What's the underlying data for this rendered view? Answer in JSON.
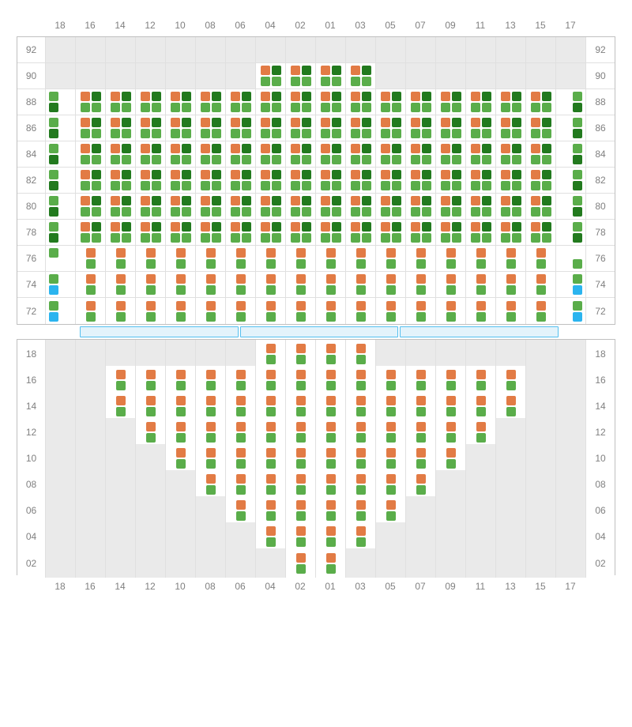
{
  "colors": {
    "orange": "#e27b45",
    "green": "#5aad4a",
    "darkgreen": "#227a1e",
    "blue": "#2bb4ef",
    "empty": "#eaeaea",
    "grid_line": "#e0e0e0",
    "label": "#808080",
    "stage_fill": "#e3f3fb",
    "stage_border": "#54bfef"
  },
  "columns": [
    "18",
    "16",
    "14",
    "12",
    "10",
    "08",
    "06",
    "04",
    "02",
    "01",
    "03",
    "05",
    "07",
    "09",
    "11",
    "13",
    "15",
    "17"
  ],
  "upper": {
    "rows": [
      "92",
      "90",
      "88",
      "86",
      "84",
      "82",
      "80",
      "78",
      "76",
      "74",
      "72"
    ],
    "cells": {
      "92": [
        ".",
        ".",
        ".",
        ".",
        ".",
        ".",
        ".",
        ".",
        ".",
        ".",
        ".",
        ".",
        ".",
        ".",
        ".",
        ".",
        ".",
        "."
      ],
      "90": [
        ".",
        ".",
        ".",
        ".",
        ".",
        ".",
        ".",
        "A",
        "A",
        "A",
        "A",
        ".",
        ".",
        ".",
        ".",
        ".",
        ".",
        "."
      ],
      "88": [
        "L",
        "A",
        "A",
        "A",
        "A",
        "A",
        "A",
        "A",
        "A",
        "A",
        "A",
        "A",
        "A",
        "A",
        "A",
        "A",
        "A",
        "R"
      ],
      "86": [
        "L",
        "A",
        "A",
        "A",
        "A",
        "A",
        "A",
        "A",
        "A",
        "A",
        "A",
        "A",
        "A",
        "A",
        "A",
        "A",
        "A",
        "R"
      ],
      "84": [
        "L",
        "A",
        "A",
        "A",
        "A",
        "A",
        "A",
        "A",
        "A",
        "A",
        "A",
        "A",
        "A",
        "A",
        "A",
        "A",
        "A",
        "R"
      ],
      "82": [
        "L",
        "A",
        "A",
        "A",
        "A",
        "A",
        "A",
        "A",
        "A",
        "A",
        "A",
        "A",
        "A",
        "A",
        "A",
        "A",
        "A",
        "R"
      ],
      "80": [
        "L",
        "A",
        "A",
        "A",
        "A",
        "A",
        "A",
        "A",
        "A",
        "A",
        "A",
        "A",
        "A",
        "A",
        "A",
        "A",
        "A",
        "R"
      ],
      "78": [
        "L",
        "A",
        "A",
        "A",
        "A",
        "A",
        "A",
        "A",
        "A",
        "A",
        "A",
        "A",
        "A",
        "A",
        "A",
        "A",
        "A",
        "R"
      ],
      "76": [
        "sL",
        "B",
        "B",
        "B",
        "B",
        "B",
        "B",
        "B",
        "B",
        "B",
        "B",
        "B",
        "B",
        "B",
        "B",
        "B",
        "B",
        "sR"
      ],
      "74": [
        "CL",
        "B",
        "B",
        "B",
        "B",
        "B",
        "B",
        "B",
        "B",
        "B",
        "B",
        "B",
        "B",
        "B",
        "B",
        "B",
        "B",
        "CR"
      ],
      "72": [
        "CL",
        "B",
        "B",
        "B",
        "B",
        "B",
        "B",
        "B",
        "B",
        "B",
        "B",
        "B",
        "B",
        "B",
        "B",
        "B",
        "B",
        "CR"
      ]
    }
  },
  "stage_span": {
    "start": 2,
    "end": 18
  },
  "lower": {
    "rows": [
      "18",
      "16",
      "14",
      "12",
      "10",
      "08",
      "06",
      "04",
      "02"
    ],
    "cells": {
      "18": [
        ".",
        ".",
        ".",
        ".",
        ".",
        ".",
        ".",
        "B",
        "B",
        "B",
        "B",
        ".",
        ".",
        ".",
        ".",
        ".",
        ".",
        "."
      ],
      "16": [
        ".",
        ".",
        "B",
        "B",
        "B",
        "B",
        "B",
        "B",
        "B",
        "B",
        "B",
        "B",
        "B",
        "B",
        "B",
        "B",
        ".",
        "."
      ],
      "14": [
        ".",
        ".",
        "B",
        "B",
        "B",
        "B",
        "B",
        "B",
        "B",
        "B",
        "B",
        "B",
        "B",
        "B",
        "B",
        "B",
        ".",
        "."
      ],
      "12": [
        ".",
        ".",
        ".",
        "B",
        "B",
        "B",
        "B",
        "B",
        "B",
        "B",
        "B",
        "B",
        "B",
        "B",
        "B",
        ".",
        ".",
        "."
      ],
      "10": [
        ".",
        ".",
        ".",
        ".",
        "B",
        "B",
        "B",
        "B",
        "B",
        "B",
        "B",
        "B",
        "B",
        "B",
        ".",
        ".",
        ".",
        "."
      ],
      "08": [
        ".",
        ".",
        ".",
        ".",
        ".",
        "B",
        "B",
        "B",
        "B",
        "B",
        "B",
        "B",
        "B",
        ".",
        ".",
        ".",
        ".",
        "."
      ],
      "06": [
        ".",
        ".",
        ".",
        ".",
        ".",
        ".",
        "B",
        "B",
        "B",
        "B",
        "B",
        "B",
        ".",
        ".",
        ".",
        ".",
        ".",
        "."
      ],
      "04": [
        ".",
        ".",
        ".",
        ".",
        ".",
        ".",
        ".",
        "B",
        "B",
        "B",
        "B",
        ".",
        ".",
        ".",
        ".",
        ".",
        ".",
        "."
      ],
      "02": [
        ".",
        ".",
        ".",
        ".",
        ".",
        ".",
        ".",
        ".",
        "B",
        "B",
        ".",
        ".",
        ".",
        ".",
        ".",
        ".",
        ".",
        "."
      ]
    }
  },
  "patterns": {
    "A": [
      "orange",
      "darkgreen",
      "green",
      "green"
    ],
    "L": [
      "green",
      "",
      "darkgreen",
      ""
    ],
    "R": [
      "",
      "green",
      "",
      "darkgreen"
    ],
    "B": [
      "orange",
      "green"
    ],
    "sL": [
      "green",
      ""
    ],
    "sR": [
      "",
      "green"
    ],
    "CL": [
      "green",
      "blue"
    ],
    "CR": [
      "green",
      "blue"
    ]
  }
}
